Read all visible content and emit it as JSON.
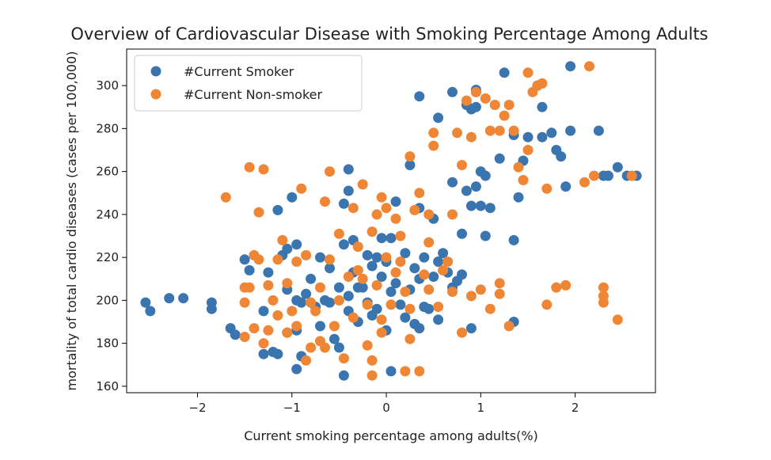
{
  "chart_data": {
    "type": "scatter",
    "title": "Overview of Cardiovascular Disease with Smoking Percentage Among Adults",
    "xlabel": "Current smoking percentage among adults(%)",
    "ylabel": "mortality of total cardio diseases (cases per 100,000)",
    "xlim": [
      -2.75,
      2.85
    ],
    "ylim": [
      157,
      317
    ],
    "xticks": [
      -2,
      -1,
      0,
      1,
      2
    ],
    "yticks": [
      160,
      180,
      200,
      220,
      240,
      260,
      280,
      300
    ],
    "xtick_labels": [
      "−2",
      "−1",
      "0",
      "1",
      "2"
    ],
    "ytick_labels": [
      "160",
      "180",
      "200",
      "220",
      "240",
      "260",
      "280",
      "300"
    ],
    "grid": false,
    "legend_position": "upper-left",
    "series": [
      {
        "name": "#Current Smoker",
        "color": "#3b75af",
        "points": [
          [
            -2.55,
            199
          ],
          [
            -2.5,
            195
          ],
          [
            -2.3,
            201
          ],
          [
            -2.15,
            201
          ],
          [
            -1.85,
            199
          ],
          [
            -1.85,
            196
          ],
          [
            -1.65,
            187
          ],
          [
            -1.6,
            184
          ],
          [
            -1.5,
            219
          ],
          [
            -1.45,
            214
          ],
          [
            -1.3,
            195
          ],
          [
            -1.25,
            213
          ],
          [
            -1.2,
            176
          ],
          [
            -1.15,
            175
          ],
          [
            -1.15,
            242
          ],
          [
            -1.1,
            221
          ],
          [
            -1.05,
            205
          ],
          [
            -1.05,
            185
          ],
          [
            -1.0,
            248
          ],
          [
            -0.95,
            226
          ],
          [
            -0.95,
            200
          ],
          [
            -0.95,
            186
          ],
          [
            -0.9,
            199
          ],
          [
            -0.9,
            174
          ],
          [
            -0.85,
            203
          ],
          [
            -0.8,
            210
          ],
          [
            -0.75,
            197
          ],
          [
            -0.7,
            188
          ],
          [
            -0.7,
            220
          ],
          [
            -0.65,
            200
          ],
          [
            -0.6,
            215
          ],
          [
            -0.6,
            199
          ],
          [
            -0.55,
            182
          ],
          [
            -0.5,
            178
          ],
          [
            -0.5,
            206
          ],
          [
            -0.45,
            226
          ],
          [
            -0.45,
            245
          ],
          [
            -0.4,
            202
          ],
          [
            -0.4,
            195
          ],
          [
            -0.35,
            228
          ],
          [
            -0.35,
            213
          ],
          [
            -0.3,
            206
          ],
          [
            -0.3,
            190
          ],
          [
            -0.25,
            206
          ],
          [
            -0.2,
            221
          ],
          [
            -0.2,
            199
          ],
          [
            -0.15,
            216
          ],
          [
            -0.15,
            193
          ],
          [
            -0.1,
            220
          ],
          [
            -0.1,
            196
          ],
          [
            -0.05,
            229
          ],
          [
            -0.05,
            211
          ],
          [
            0.0,
            218
          ],
          [
            0.0,
            186
          ],
          [
            0.05,
            229
          ],
          [
            0.05,
            204
          ],
          [
            0.1,
            246
          ],
          [
            0.1,
            208
          ],
          [
            0.15,
            198
          ],
          [
            0.2,
            192
          ],
          [
            0.2,
            222
          ],
          [
            0.25,
            205
          ],
          [
            0.25,
            263
          ],
          [
            0.3,
            215
          ],
          [
            0.3,
            189
          ],
          [
            0.35,
            210
          ],
          [
            0.35,
            243
          ],
          [
            0.4,
            220
          ],
          [
            0.4,
            197
          ],
          [
            0.45,
            196
          ],
          [
            0.5,
            211
          ],
          [
            0.5,
            238
          ],
          [
            0.55,
            218
          ],
          [
            0.55,
            191
          ],
          [
            0.6,
            222
          ],
          [
            0.65,
            213
          ],
          [
            0.7,
            206
          ],
          [
            0.7,
            255
          ],
          [
            0.75,
            209
          ],
          [
            0.8,
            231
          ],
          [
            0.8,
            212
          ],
          [
            0.85,
            251
          ],
          [
            0.9,
            244
          ],
          [
            0.9,
            187
          ],
          [
            0.95,
            253
          ],
          [
            1.0,
            244
          ],
          [
            1.0,
            260
          ],
          [
            1.05,
            230
          ],
          [
            1.05,
            258
          ],
          [
            1.1,
            243
          ],
          [
            1.2,
            266
          ],
          [
            1.25,
            306
          ],
          [
            1.35,
            228
          ],
          [
            1.4,
            248
          ],
          [
            1.45,
            265
          ],
          [
            1.5,
            276
          ],
          [
            1.6,
            300
          ],
          [
            1.65,
            276
          ],
          [
            1.65,
            290
          ],
          [
            1.75,
            278
          ],
          [
            1.8,
            270
          ],
          [
            1.85,
            267
          ],
          [
            1.9,
            253
          ],
          [
            1.95,
            279
          ],
          [
            1.95,
            309
          ],
          [
            2.25,
            279
          ],
          [
            2.3,
            258
          ],
          [
            2.35,
            258
          ],
          [
            2.45,
            262
          ],
          [
            2.55,
            258
          ],
          [
            2.65,
            258
          ],
          [
            0.95,
            297
          ],
          [
            0.95,
            298
          ],
          [
            0.95,
            290
          ],
          [
            0.35,
            295
          ],
          [
            0.55,
            285
          ],
          [
            0.7,
            297
          ],
          [
            0.85,
            291
          ],
          [
            0.9,
            289
          ],
          [
            1.35,
            277
          ],
          [
            0.35,
            187
          ],
          [
            -0.45,
            165
          ],
          [
            0.05,
            167
          ],
          [
            -0.95,
            168
          ],
          [
            -1.3,
            175
          ],
          [
            1.35,
            190
          ],
          [
            -1.05,
            224
          ],
          [
            -0.4,
            251
          ],
          [
            -0.4,
            261
          ]
        ]
      },
      {
        "name": "#Current Non-smoker",
        "color": "#ef8636",
        "points": [
          [
            -1.7,
            248
          ],
          [
            -1.5,
            206
          ],
          [
            -1.5,
            199
          ],
          [
            -1.45,
            206
          ],
          [
            -1.45,
            262
          ],
          [
            -1.4,
            221
          ],
          [
            -1.35,
            219
          ],
          [
            -1.35,
            241
          ],
          [
            -1.3,
            261
          ],
          [
            -1.3,
            180
          ],
          [
            -1.25,
            186
          ],
          [
            -1.25,
            207
          ],
          [
            -1.2,
            200
          ],
          [
            -1.15,
            193
          ],
          [
            -1.15,
            219
          ],
          [
            -1.1,
            228
          ],
          [
            -1.05,
            185
          ],
          [
            -1.05,
            208
          ],
          [
            -1.0,
            195
          ],
          [
            -0.95,
            218
          ],
          [
            -0.95,
            188
          ],
          [
            -0.9,
            252
          ],
          [
            -0.85,
            172
          ],
          [
            -0.85,
            221
          ],
          [
            -0.8,
            199
          ],
          [
            -0.8,
            178
          ],
          [
            -0.75,
            195
          ],
          [
            -0.7,
            206
          ],
          [
            -0.7,
            181
          ],
          [
            -0.65,
            246
          ],
          [
            -0.6,
            260
          ],
          [
            -0.6,
            219
          ],
          [
            -0.55,
            188
          ],
          [
            -0.5,
            231
          ],
          [
            -0.5,
            200
          ],
          [
            -0.45,
            173
          ],
          [
            -0.4,
            211
          ],
          [
            -0.35,
            243
          ],
          [
            -0.35,
            192
          ],
          [
            -0.3,
            225
          ],
          [
            -0.3,
            214
          ],
          [
            -0.25,
            254
          ],
          [
            -0.25,
            210
          ],
          [
            -0.2,
            198
          ],
          [
            -0.2,
            179
          ],
          [
            -0.15,
            165
          ],
          [
            -0.15,
            232
          ],
          [
            -0.1,
            240
          ],
          [
            -0.1,
            207
          ],
          [
            -0.05,
            248
          ],
          [
            -0.05,
            185
          ],
          [
            0.0,
            243
          ],
          [
            0.0,
            220
          ],
          [
            0.05,
            198
          ],
          [
            0.1,
            238
          ],
          [
            0.1,
            213
          ],
          [
            0.15,
            230
          ],
          [
            0.2,
            204
          ],
          [
            0.2,
            167
          ],
          [
            0.25,
            267
          ],
          [
            0.25,
            196
          ],
          [
            0.3,
            242
          ],
          [
            0.35,
            250
          ],
          [
            0.35,
            167
          ],
          [
            0.4,
            212
          ],
          [
            0.45,
            227
          ],
          [
            0.45,
            205
          ],
          [
            0.5,
            272
          ],
          [
            0.5,
            278
          ],
          [
            0.55,
            197
          ],
          [
            0.6,
            214
          ],
          [
            0.65,
            218
          ],
          [
            0.7,
            240
          ],
          [
            0.7,
            204
          ],
          [
            0.75,
            278
          ],
          [
            0.8,
            263
          ],
          [
            0.8,
            185
          ],
          [
            0.85,
            293
          ],
          [
            0.9,
            276
          ],
          [
            0.9,
            202
          ],
          [
            0.95,
            297
          ],
          [
            1.05,
            294
          ],
          [
            1.1,
            279
          ],
          [
            1.15,
            291
          ],
          [
            1.2,
            279
          ],
          [
            1.2,
            203
          ],
          [
            1.25,
            286
          ],
          [
            1.3,
            291
          ],
          [
            1.35,
            279
          ],
          [
            1.4,
            262
          ],
          [
            1.45,
            256
          ],
          [
            1.5,
            306
          ],
          [
            1.55,
            297
          ],
          [
            1.6,
            300
          ],
          [
            1.65,
            301
          ],
          [
            1.7,
            252
          ],
          [
            1.7,
            198
          ],
          [
            1.8,
            206
          ],
          [
            1.9,
            207
          ],
          [
            2.15,
            309
          ],
          [
            2.1,
            255
          ],
          [
            2.2,
            258
          ],
          [
            2.3,
            206
          ],
          [
            2.3,
            202
          ],
          [
            2.3,
            199
          ],
          [
            2.45,
            191
          ],
          [
            2.6,
            258
          ],
          [
            1.2,
            208
          ],
          [
            1.0,
            205
          ],
          [
            1.1,
            196
          ],
          [
            1.3,
            188
          ],
          [
            1.5,
            270
          ],
          [
            -0.15,
            172
          ],
          [
            0.45,
            240
          ],
          [
            -1.5,
            183
          ],
          [
            -1.4,
            187
          ],
          [
            -0.65,
            178
          ],
          [
            -0.05,
            191
          ],
          [
            0.15,
            218
          ],
          [
            0.25,
            182
          ]
        ]
      }
    ]
  }
}
